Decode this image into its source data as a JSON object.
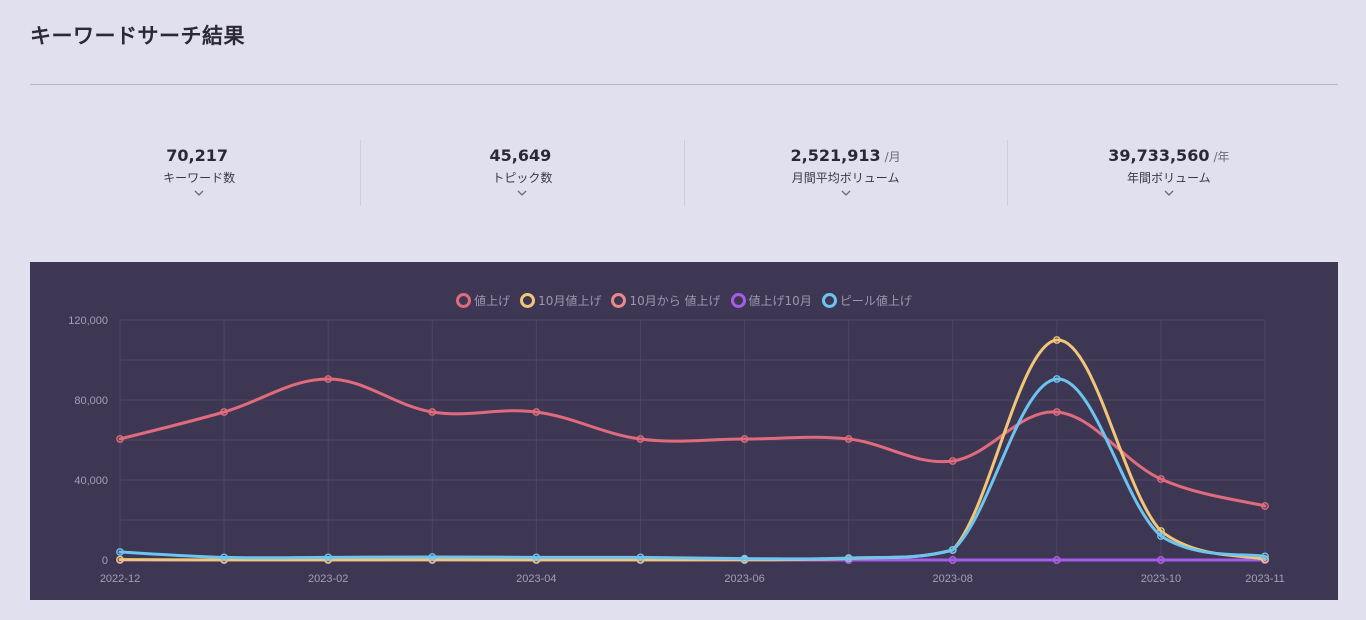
{
  "page": {
    "title": "キーワードサーチ結果"
  },
  "stats": [
    {
      "value": "70,217",
      "unit": "",
      "label": "キーワード数"
    },
    {
      "value": "45,649",
      "unit": "",
      "label": "トピック数"
    },
    {
      "value": "2,521,913",
      "unit": "/月",
      "label": "月間平均ボリューム"
    },
    {
      "value": "39,733,560",
      "unit": "/年",
      "label": "年間ボリューム"
    }
  ],
  "colors": {
    "panel_bg": "#3e3753",
    "grid": "#4d4662",
    "tick": "#a49fb6",
    "red": "#e06b7d",
    "yellow": "#f0c679",
    "salmon": "#e88a88",
    "purple": "#a45de6",
    "blue": "#6cc4ef"
  },
  "chart_data": {
    "type": "line",
    "title": "",
    "xlabel": "",
    "ylabel": "",
    "ylim": [
      0,
      120000
    ],
    "yticks": [
      "0",
      "40,000",
      "80,000",
      "120,000"
    ],
    "ytick_values": [
      0,
      40000,
      80000,
      120000
    ],
    "categories": [
      "2022-12",
      "2023-01",
      "2023-02",
      "2023-03",
      "2023-04",
      "2023-05",
      "2023-06",
      "2023-07",
      "2023-08",
      "2023-09",
      "2023-10",
      "2023-11"
    ],
    "xtick_labels": [
      "2022-12",
      "",
      "2023-02",
      "",
      "2023-04",
      "",
      "2023-06",
      "",
      "2023-08",
      "",
      "2023-10",
      "2023-11"
    ],
    "legend_position": "top-center",
    "series": [
      {
        "name": "値上げ",
        "color": "#e06b7d",
        "values": [
          60500,
          74000,
          90500,
          74000,
          74000,
          60500,
          60500,
          60500,
          49500,
          74000,
          40500,
          27000
        ]
      },
      {
        "name": "10月値上げ",
        "color": "#f0c679",
        "values": [
          200,
          50,
          50,
          100,
          50,
          50,
          100,
          800,
          5000,
          110000,
          14500,
          300
        ]
      },
      {
        "name": "10月から 値上げ",
        "color": "#e88a88",
        "values": [
          0,
          0,
          0,
          0,
          0,
          0,
          0,
          0,
          0,
          0,
          0,
          0
        ]
      },
      {
        "name": "値上げ10月",
        "color": "#a45de6",
        "values": [
          0,
          0,
          0,
          0,
          0,
          0,
          0,
          0,
          0,
          0,
          0,
          0
        ]
      },
      {
        "name": "ピール値上げ",
        "color": "#6cc4ef",
        "values": [
          4000,
          1300,
          1300,
          1500,
          1300,
          1300,
          700,
          1000,
          5000,
          90500,
          12000,
          1800
        ]
      }
    ]
  }
}
